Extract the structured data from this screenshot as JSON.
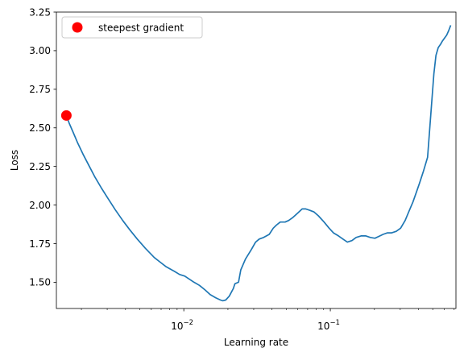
{
  "chart_data": {
    "type": "line",
    "xlabel": "Learning rate",
    "ylabel": "Loss",
    "xscale": "log",
    "xlim": [
      0.00135,
      0.72
    ],
    "ylim": [
      1.33,
      3.25
    ],
    "grid": false,
    "x_ticks": [
      {
        "value": 0.01,
        "base": "10",
        "exp": "−2"
      },
      {
        "value": 0.1,
        "base": "10",
        "exp": "−1"
      }
    ],
    "y_ticks": [
      {
        "value": 1.5,
        "label": "1.50"
      },
      {
        "value": 1.75,
        "label": "1.75"
      },
      {
        "value": 2.0,
        "label": "2.00"
      },
      {
        "value": 2.25,
        "label": "2.25"
      },
      {
        "value": 2.5,
        "label": "2.50"
      },
      {
        "value": 2.75,
        "label": "2.75"
      },
      {
        "value": 3.0,
        "label": "3.00"
      },
      {
        "value": 3.25,
        "label": "3.25"
      }
    ],
    "legend": {
      "placement": "upper-left",
      "entries": [
        "steepest gradient"
      ]
    },
    "colors": {
      "line": "#1f77b4",
      "marker": "#ff0000"
    },
    "series": [
      {
        "style": "line",
        "x": [
          0.00158,
          0.00165,
          0.00176,
          0.00189,
          0.00205,
          0.00224,
          0.00248,
          0.00274,
          0.00305,
          0.0034,
          0.00383,
          0.00428,
          0.00481,
          0.00547,
          0.00629,
          0.0069,
          0.00759,
          0.00865,
          0.00936,
          0.01016,
          0.0109,
          0.01173,
          0.01279,
          0.01398,
          0.01514,
          0.01647,
          0.01779,
          0.01845,
          0.01933,
          0.02042,
          0.0218,
          0.02232,
          0.02364,
          0.02449,
          0.02636,
          0.02884,
          0.0309,
          0.03273,
          0.03506,
          0.03826,
          0.04078,
          0.04285,
          0.04552,
          0.04909,
          0.05188,
          0.05557,
          0.06016,
          0.06425,
          0.06804,
          0.0729,
          0.07748,
          0.08298,
          0.09066,
          0.09813,
          0.10495,
          0.11364,
          0.12187,
          0.13074,
          0.14049,
          0.14996,
          0.16196,
          0.17476,
          0.18755,
          0.20144,
          0.21792,
          0.22888,
          0.24559,
          0.26254,
          0.28183,
          0.30178,
          0.32373,
          0.34438,
          0.36645,
          0.3825,
          0.40559,
          0.43237,
          0.46122,
          0.49091,
          0.50867,
          0.52593,
          0.54501,
          0.56402,
          0.5798,
          0.60017,
          0.62172,
          0.64281,
          0.66082
        ],
        "y": [
          2.58,
          2.53,
          2.47,
          2.4,
          2.33,
          2.26,
          2.18,
          2.11,
          2.04,
          1.97,
          1.9,
          1.84,
          1.78,
          1.72,
          1.66,
          1.63,
          1.6,
          1.57,
          1.55,
          1.54,
          1.52,
          1.5,
          1.48,
          1.45,
          1.42,
          1.4,
          1.385,
          1.38,
          1.385,
          1.41,
          1.46,
          1.49,
          1.5,
          1.58,
          1.65,
          1.71,
          1.76,
          1.78,
          1.79,
          1.81,
          1.85,
          1.87,
          1.89,
          1.89,
          1.9,
          1.92,
          1.95,
          1.975,
          1.975,
          1.965,
          1.955,
          1.93,
          1.89,
          1.85,
          1.82,
          1.8,
          1.78,
          1.76,
          1.77,
          1.79,
          1.8,
          1.8,
          1.79,
          1.785,
          1.8,
          1.81,
          1.82,
          1.82,
          1.83,
          1.85,
          1.9,
          1.96,
          2.02,
          2.07,
          2.14,
          2.22,
          2.31,
          2.65,
          2.85,
          2.97,
          3.02,
          3.04,
          3.06,
          3.08,
          3.1,
          3.13,
          3.16
        ]
      },
      {
        "name": "steepest gradient",
        "style": "marker",
        "x": [
          0.00158
        ],
        "y": [
          2.58
        ]
      }
    ]
  }
}
